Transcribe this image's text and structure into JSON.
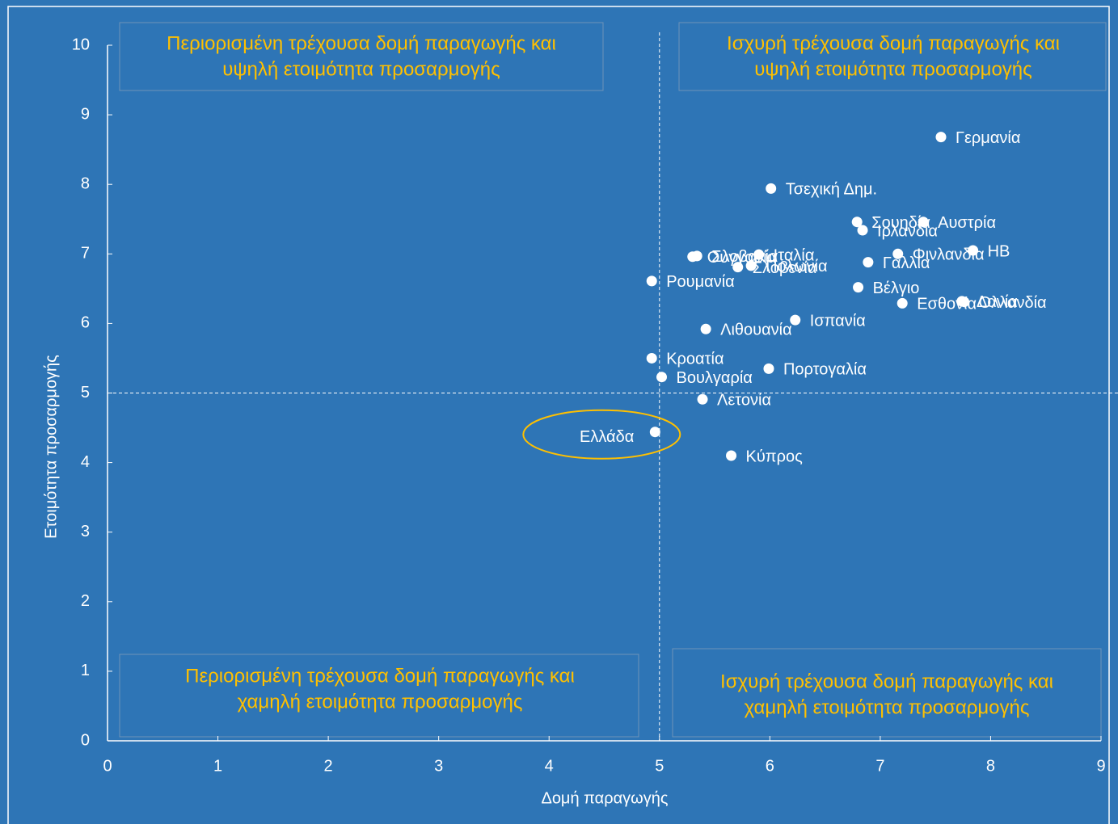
{
  "chart_data": {
    "type": "scatter",
    "x_label": "Δομή παραγωγής",
    "y_label": "Ετοιμότητα προσαρμογής",
    "labels": [
      "Γερμανία",
      "Τσεχική Δημ.",
      "Αυστρία",
      "Σουηδία",
      "Ιρλανδία",
      "Σλοβακία",
      "Ουγγαρία",
      "Πολωνία",
      "Ιταλία",
      "ΗΒ",
      "Γαλλία",
      "Φινλανδία",
      "Ρουμανία",
      "Σλοβενία",
      "Βέλγιο",
      "Εσθονία",
      "Δανία",
      "Ολλανδία",
      "Ισπανία",
      "Λιθουανία",
      "Κροατία",
      "Βουλγαρία",
      "Πορτογαλία",
      "Λετονία",
      "Ελλάδα",
      "Κύπρος"
    ],
    "x": [
      7.55,
      6.01,
      7.39,
      6.79,
      6.84,
      5.34,
      5.3,
      5.83,
      5.9,
      7.84,
      6.89,
      7.16,
      4.93,
      5.71,
      6.8,
      7.2,
      7.74,
      7.76,
      6.23,
      5.42,
      4.93,
      5.02,
      5.99,
      5.39,
      4.96,
      5.65
    ],
    "values": [
      8.68,
      7.94,
      7.46,
      7.46,
      7.34,
      6.97,
      6.96,
      6.83,
      6.99,
      7.05,
      6.88,
      7.0,
      6.61,
      6.81,
      6.52,
      6.29,
      6.32,
      6.31,
      6.05,
      5.92,
      5.5,
      5.23,
      5.35,
      4.91,
      4.44,
      4.1
    ],
    "color": "#ffffff",
    "highlight_point": 24,
    "highlight_color": "#ffc000",
    "reference_x": 5,
    "reference_y": 5,
    "xlim": [
      0,
      9
    ],
    "xticks": [
      0,
      1,
      2,
      3,
      4,
      5,
      6,
      7,
      8,
      9
    ],
    "ylim": [
      0,
      10
    ],
    "yticks": [
      0,
      1,
      2,
      3,
      4,
      5,
      6,
      7,
      8,
      9,
      10
    ],
    "quadrants": [
      [
        "Περιορισμένη τρέχουσα δομή παραγωγής και",
        "υψηλή ετοιμότητα προσαρμογής"
      ],
      [
        "Ισχυρή τρέχουσα δομή παραγωγής και",
        "υψηλή ετοιμότητα προσαρμογής"
      ],
      [
        "Περιορισμένη τρέχουσα δομή παραγωγής και",
        "χαμηλή ετοιμότητα προσαρμογής"
      ],
      [
        "Ισχυρή τρέχουσα δομή παραγωγής και",
        "χαμηλή ετοιμότητα προσαρμογής"
      ]
    ]
  }
}
